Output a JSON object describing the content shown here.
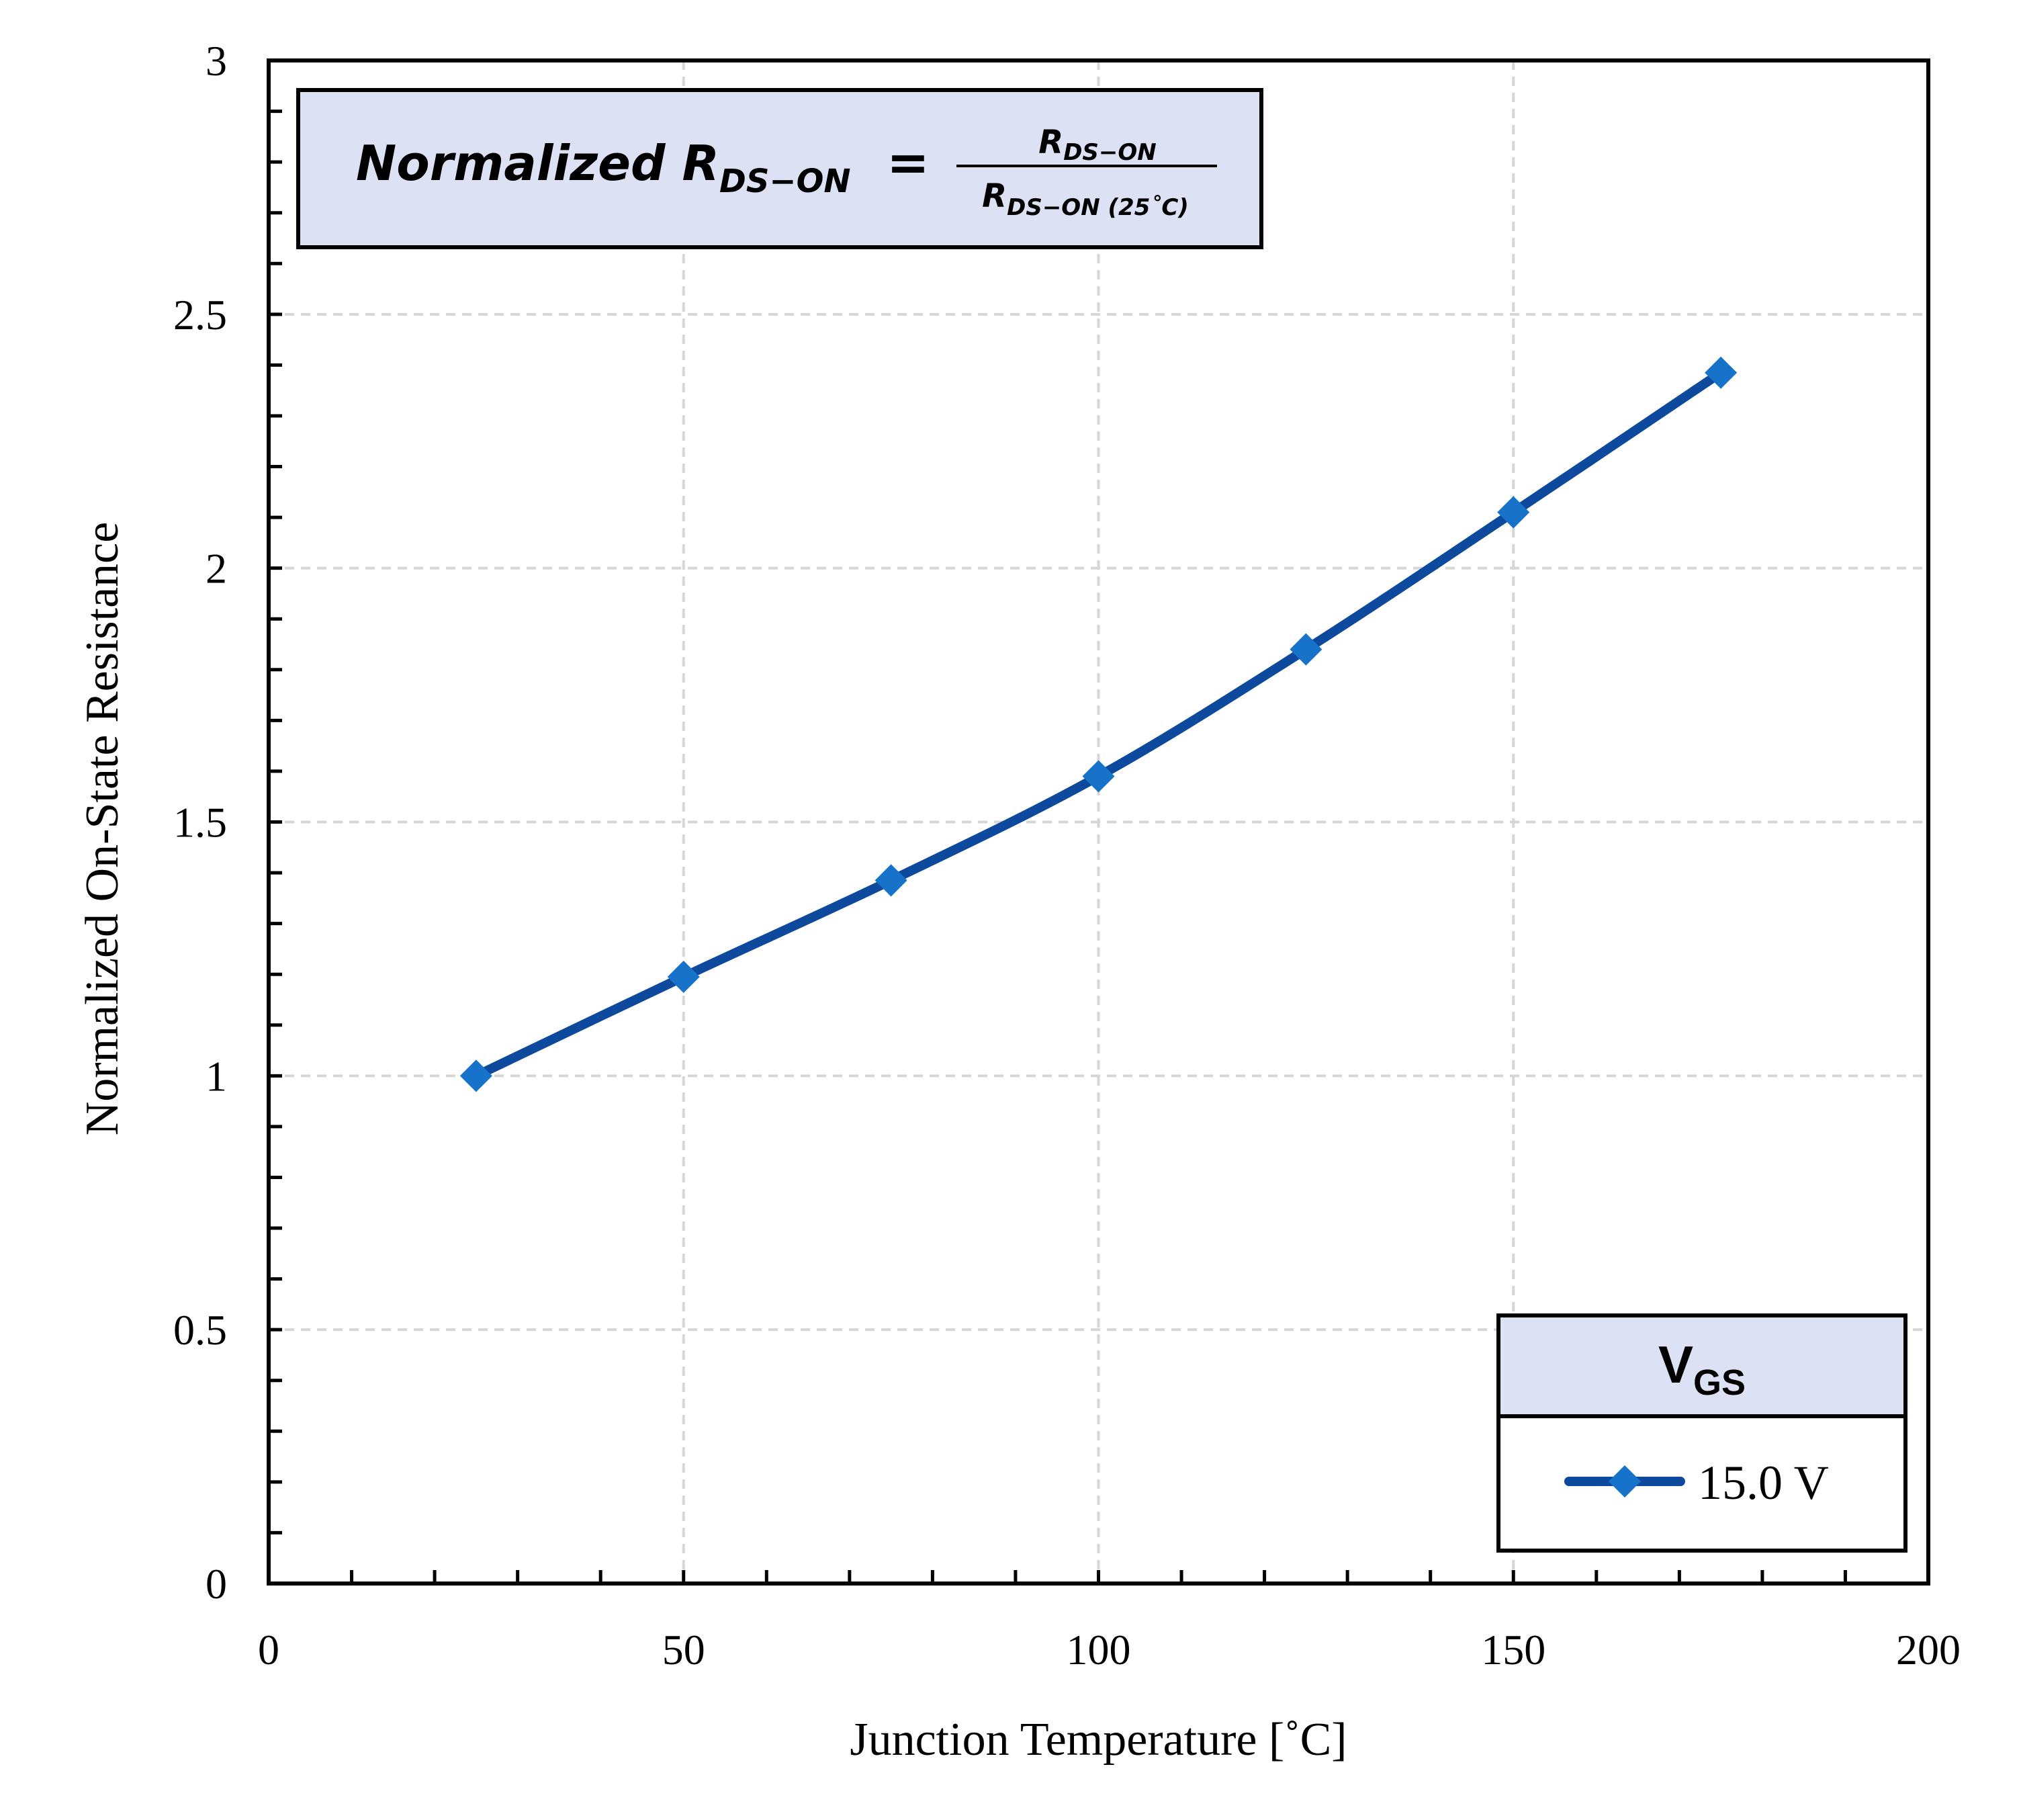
{
  "chart_data": {
    "type": "line",
    "title": "",
    "xlabel": "Junction Temperature [˚C]",
    "ylabel": "Normalized On-State Resistance",
    "xlim": [
      0,
      200
    ],
    "ylim": [
      0,
      3
    ],
    "x_major_ticks": [
      0,
      50,
      100,
      150,
      200
    ],
    "x_tick_labels": [
      "0",
      "50",
      "100",
      "150",
      "200"
    ],
    "x_minor_step": 10,
    "y_major_ticks": [
      0,
      0.5,
      1,
      1.5,
      2,
      2.5,
      3
    ],
    "y_tick_labels": [
      "0",
      "0.5",
      "1",
      "1.5",
      "2",
      "2.5",
      "3"
    ],
    "y_minor_step": 0.1,
    "grid": true,
    "legend": {
      "title_main": "V",
      "title_sub": "GS",
      "placement": "bottom-right"
    },
    "series": [
      {
        "name": "15.0 V",
        "x": [
          25,
          50,
          75,
          100,
          125,
          150,
          175
        ],
        "values": [
          1.0,
          1.195,
          1.385,
          1.59,
          1.84,
          2.11,
          2.385
        ],
        "color": "#0D4A9E",
        "marker_color": "#1673C9",
        "marker": "diamond"
      }
    ],
    "annotation": {
      "lhs": "Normalized R",
      "lhs_sub": "DS−ON",
      "equals": "=",
      "num": "R",
      "num_sub": "DS−ON",
      "den": "R",
      "den_sub": "DS−ON (25˚C)"
    }
  },
  "colors": {
    "box_fill": "#DCE2F4",
    "grid": "#D6D6D6",
    "axis": "#000000"
  }
}
